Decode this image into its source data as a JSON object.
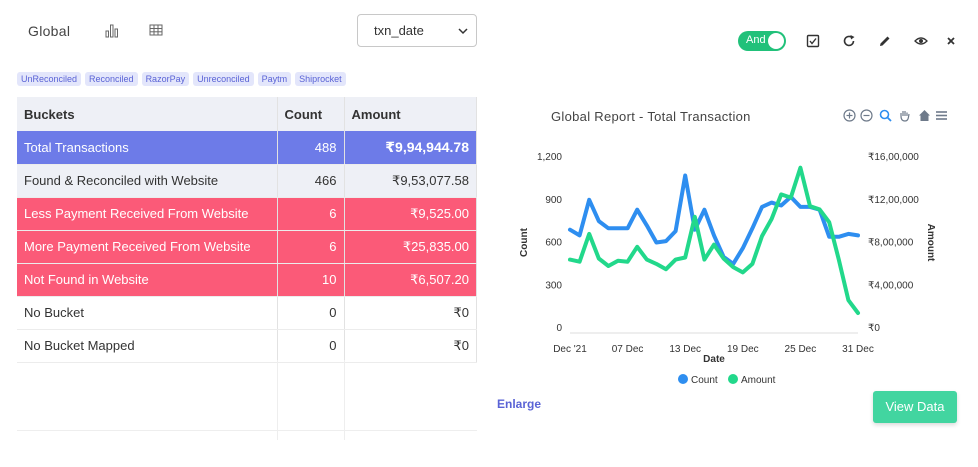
{
  "header": {
    "title": "Global",
    "date_field_value": "txn_date",
    "toggle_label": "And"
  },
  "tags": [
    "UnReconciled",
    "Reconciled",
    "RazorPay",
    "Unreconciled",
    "Paytm",
    "Shiprocket"
  ],
  "table": {
    "headers": {
      "buckets": "Buckets",
      "count": "Count",
      "amount": "Amount"
    },
    "rows": [
      {
        "bucket": "Total Transactions",
        "count": "488",
        "amount": "₹9,94,944.78"
      },
      {
        "bucket": "Found & Reconciled with Website",
        "count": "466",
        "amount": "₹9,53,077.58"
      },
      {
        "bucket": "Less Payment Received From Website",
        "count": "6",
        "amount": "₹9,525.00"
      },
      {
        "bucket": "More Payment Received From Website",
        "count": "6",
        "amount": "₹25,835.00"
      },
      {
        "bucket": "Not Found in Website",
        "count": "10",
        "amount": "₹6,507.20"
      },
      {
        "bucket": "No Bucket",
        "count": "0",
        "amount": "₹0"
      },
      {
        "bucket": "No Bucket Mapped",
        "count": "0",
        "amount": "₹0"
      }
    ]
  },
  "colors": {
    "accent": "#6d7be8",
    "danger": "#fb5a78",
    "count_series": "#2e8ef0",
    "amount_series": "#22d88b",
    "success": "#21c17a"
  },
  "chart_data": {
    "type": "line",
    "title": "Global Report - Total Transaction",
    "xlabel": "Date",
    "ylabel": "Count",
    "y2label": "Amount",
    "x_ticks": [
      "Dec '21",
      "07 Dec",
      "13 Dec",
      "19 Dec",
      "25 Dec",
      "31 Dec"
    ],
    "y_ticks": [
      "0",
      "300",
      "600",
      "900",
      "1,200"
    ],
    "y2_ticks": [
      "₹0",
      "₹4,00,000",
      "₹8,00,000",
      "₹12,00,000",
      "₹16,00,000"
    ],
    "ylim": [
      0,
      1200
    ],
    "y2lim": [
      0,
      1600000
    ],
    "x_days": [
      1,
      2,
      3,
      4,
      5,
      6,
      7,
      8,
      9,
      10,
      11,
      12,
      13,
      14,
      15,
      16,
      17,
      18,
      19,
      20,
      21,
      22,
      23,
      24,
      25,
      26,
      27,
      28,
      29,
      30,
      31
    ],
    "series": [
      {
        "name": "Count",
        "axis": "left",
        "values": [
          690,
          650,
          900,
          750,
          700,
          700,
          700,
          830,
          720,
          600,
          610,
          680,
          1070,
          690,
          830,
          650,
          500,
          450,
          560,
          700,
          850,
          880,
          860,
          920,
          850,
          850,
          830,
          640,
          640,
          660,
          650
        ]
      },
      {
        "name": "Amount",
        "axis": "right",
        "values": [
          640000,
          620000,
          880000,
          650000,
          580000,
          630000,
          620000,
          760000,
          640000,
          600000,
          550000,
          640000,
          660000,
          1040000,
          640000,
          780000,
          650000,
          570000,
          520000,
          600000,
          860000,
          1020000,
          1250000,
          1220000,
          1500000,
          1140000,
          1110000,
          990000,
          640000,
          260000,
          140000
        ]
      }
    ],
    "legend": {
      "placement": "bottom"
    }
  },
  "footer": {
    "enlarge": "Enlarge",
    "view_data": "View Data"
  }
}
